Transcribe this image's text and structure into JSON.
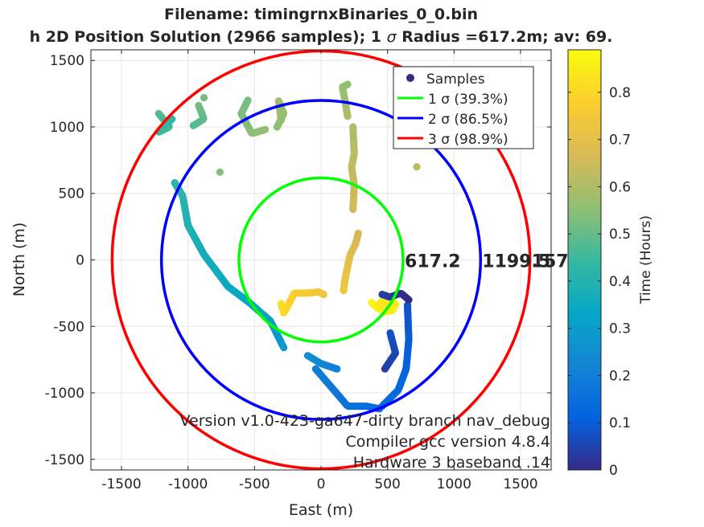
{
  "chart_data": {
    "type": "scatter",
    "title_line1": "Filename: timingrnxBinaries_0_0.bin",
    "title_line2_prefix": "h 2D Position Solution (2966 samples); 1 ",
    "title_sigma": "σ",
    "title_line2_suffix": " Radius =617.2m; av: 69.",
    "xlabel": "East (m)",
    "ylabel": "North (m)",
    "xlim": [
      -1730,
      1730
    ],
    "ylim": [
      -1580,
      1580
    ],
    "xticks": [
      -1500,
      -1000,
      -500,
      0,
      500,
      1000,
      1500
    ],
    "yticks": [
      -1500,
      -1000,
      -500,
      0,
      500,
      1000,
      1500
    ],
    "grid": true,
    "legend_position": "top-right",
    "legend": {
      "samples": "Samples",
      "sigma1": "1 σ (39.3%)",
      "sigma2": "2 σ (86.5%)",
      "sigma3": "3 σ (98.9%)"
    },
    "circles": [
      {
        "name": "1 σ (39.3%)",
        "radius": 617.2,
        "color": "#00ff00",
        "label": "617.2"
      },
      {
        "name": "2 σ (86.5%)",
        "radius": 1199.5,
        "color": "#0000ff",
        "label": "1199.5"
      },
      {
        "name": "3 σ (98.9%)",
        "radius": 1570.8,
        "color": "#ff0000",
        "label": "1570.8"
      }
    ],
    "colorbar": {
      "label": "Time (Hours)",
      "lim": [
        0,
        0.89
      ],
      "ticks": [
        0,
        0.1,
        0.2,
        0.3,
        0.4,
        0.5,
        0.6,
        0.7,
        0.8
      ]
    },
    "annotation": {
      "line1": "Version v1.0-423-ga647-dirty branch nav_debug",
      "line2": "Compiler gcc version 4.8.4",
      "line3": "Hardware 3 baseband .14"
    },
    "tracks": [
      {
        "t0": 0.88,
        "t1": 0.83,
        "points": [
          [
            380,
            -320
          ],
          [
            420,
            -360
          ],
          [
            480,
            -390
          ],
          [
            540,
            -380
          ],
          [
            560,
            -330
          ],
          [
            480,
            -290
          ],
          [
            430,
            -340
          ],
          [
            500,
            -350
          ]
        ]
      },
      {
        "t0": 0.82,
        "t1": 0.74,
        "points": [
          [
            -300,
            -330
          ],
          [
            -280,
            -400
          ],
          [
            -200,
            -250
          ],
          [
            -100,
            -250
          ],
          [
            -20,
            -240
          ],
          [
            20,
            -260
          ]
        ]
      },
      {
        "t0": 0.74,
        "t1": 0.66,
        "points": [
          [
            170,
            -230
          ],
          [
            180,
            -150
          ],
          [
            200,
            -50
          ],
          [
            220,
            40
          ],
          [
            260,
            120
          ],
          [
            280,
            200
          ]
        ]
      },
      {
        "t0": 0.66,
        "t1": 0.6,
        "points": [
          [
            240,
            380
          ],
          [
            250,
            560
          ],
          [
            230,
            700
          ],
          [
            250,
            800
          ],
          [
            240,
            1000
          ]
        ]
      },
      {
        "t0": 0.6,
        "t1": 0.56,
        "points": [
          [
            200,
            1080
          ],
          [
            180,
            1200
          ],
          [
            160,
            1300
          ],
          [
            200,
            1320
          ]
        ]
      },
      {
        "t0": 0.6,
        "t1": 0.55,
        "points": [
          [
            -300,
            1050
          ],
          [
            -320,
            1200
          ],
          [
            -280,
            1100
          ],
          [
            -330,
            1000
          ]
        ]
      },
      {
        "t0": 0.56,
        "t1": 0.52,
        "points": [
          [
            -420,
            980
          ],
          [
            -520,
            950
          ],
          [
            -600,
            1100
          ],
          [
            -550,
            1200
          ]
        ]
      },
      {
        "t0": 0.52,
        "t1": 0.48,
        "points": [
          [
            -920,
            1160
          ],
          [
            -880,
            1060
          ],
          [
            -960,
            1010
          ]
        ]
      },
      {
        "t0": 0.48,
        "t1": 0.43,
        "points": [
          [
            -1220,
            1100
          ],
          [
            -1140,
            1000
          ],
          [
            -1220,
            960
          ],
          [
            -1120,
            1060
          ]
        ]
      },
      {
        "t0": 0.42,
        "t1": 0.33,
        "points": [
          [
            -1100,
            580
          ],
          [
            -1040,
            480
          ],
          [
            -1000,
            260
          ],
          [
            -880,
            40
          ],
          [
            -700,
            -200
          ],
          [
            -540,
            -320
          ]
        ]
      },
      {
        "t0": 0.33,
        "t1": 0.28,
        "points": [
          [
            -540,
            -320
          ],
          [
            -380,
            -460
          ],
          [
            -280,
            -660
          ]
        ]
      },
      {
        "t0": 0.26,
        "t1": 0.2,
        "points": [
          [
            -100,
            -720
          ],
          [
            0,
            -780
          ],
          [
            120,
            -820
          ]
        ]
      },
      {
        "t0": 0.2,
        "t1": 0.14,
        "points": [
          [
            -40,
            -820
          ],
          [
            80,
            -960
          ],
          [
            200,
            -1100
          ],
          [
            340,
            -1100
          ],
          [
            440,
            -1120
          ]
        ]
      },
      {
        "t0": 0.14,
        "t1": 0.08,
        "points": [
          [
            460,
            -1100
          ],
          [
            580,
            -980
          ],
          [
            640,
            -820
          ],
          [
            660,
            -600
          ],
          [
            650,
            -340
          ]
        ]
      },
      {
        "t0": 0.08,
        "t1": 0.04,
        "points": [
          [
            520,
            -550
          ],
          [
            560,
            -700
          ],
          [
            480,
            -820
          ]
        ]
      },
      {
        "t0": 0.04,
        "t1": 0.0,
        "points": [
          [
            460,
            -260
          ],
          [
            520,
            -280
          ],
          [
            600,
            -250
          ],
          [
            660,
            -300
          ]
        ]
      }
    ],
    "isolated": [
      {
        "x": 720,
        "y": 700,
        "t": 0.62
      },
      {
        "x": -760,
        "y": 660,
        "t": 0.54
      },
      {
        "x": -880,
        "y": 1220,
        "t": 0.52
      }
    ]
  }
}
